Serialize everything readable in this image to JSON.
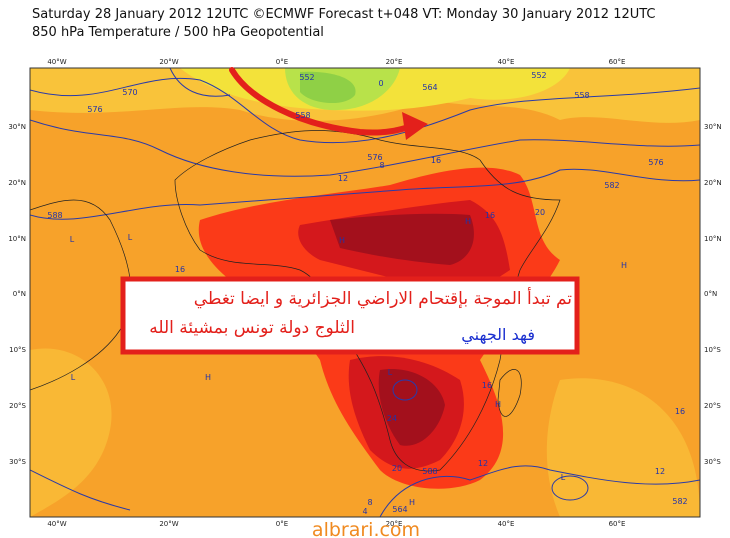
{
  "header": {
    "line1": "Saturday 28 January 2012 12UTC ©ECMWF Forecast t+048 VT: Monday 30 January 2012 12UTC",
    "line2": "850 hPa Temperature / 500 hPa Geopotential"
  },
  "map": {
    "lon_labels": [
      "40°W",
      "20°W",
      "0°E",
      "20°E",
      "40°E",
      "60°E"
    ],
    "lat_labels": [
      "30°N",
      "20°N",
      "10°N",
      "0°N",
      "10°S",
      "20°S",
      "30°S"
    ],
    "contour_labels": [
      "576",
      "570",
      "558",
      "552",
      "0",
      "564",
      "8",
      "12",
      "576",
      "16",
      "20",
      "16",
      "558",
      "552",
      "576",
      "582",
      "16",
      "16",
      "24",
      "588",
      "20",
      "12",
      "12",
      "16",
      "588",
      "564",
      "582",
      "8",
      "4"
    ],
    "pressure_marks": [
      "L",
      "L",
      "H",
      "H",
      "H",
      "L",
      "H",
      "L",
      "H",
      "L",
      "H"
    ]
  },
  "annotation": {
    "lines": [
      "تم تبدأ الموجة بإقتحام الاراضي الجزائرية و ايضا تغطي",
      "الثلوج دولة تونس بمشيئة الله"
    ],
    "signature": "فهد الجهني"
  },
  "watermark": "albrari.com"
}
